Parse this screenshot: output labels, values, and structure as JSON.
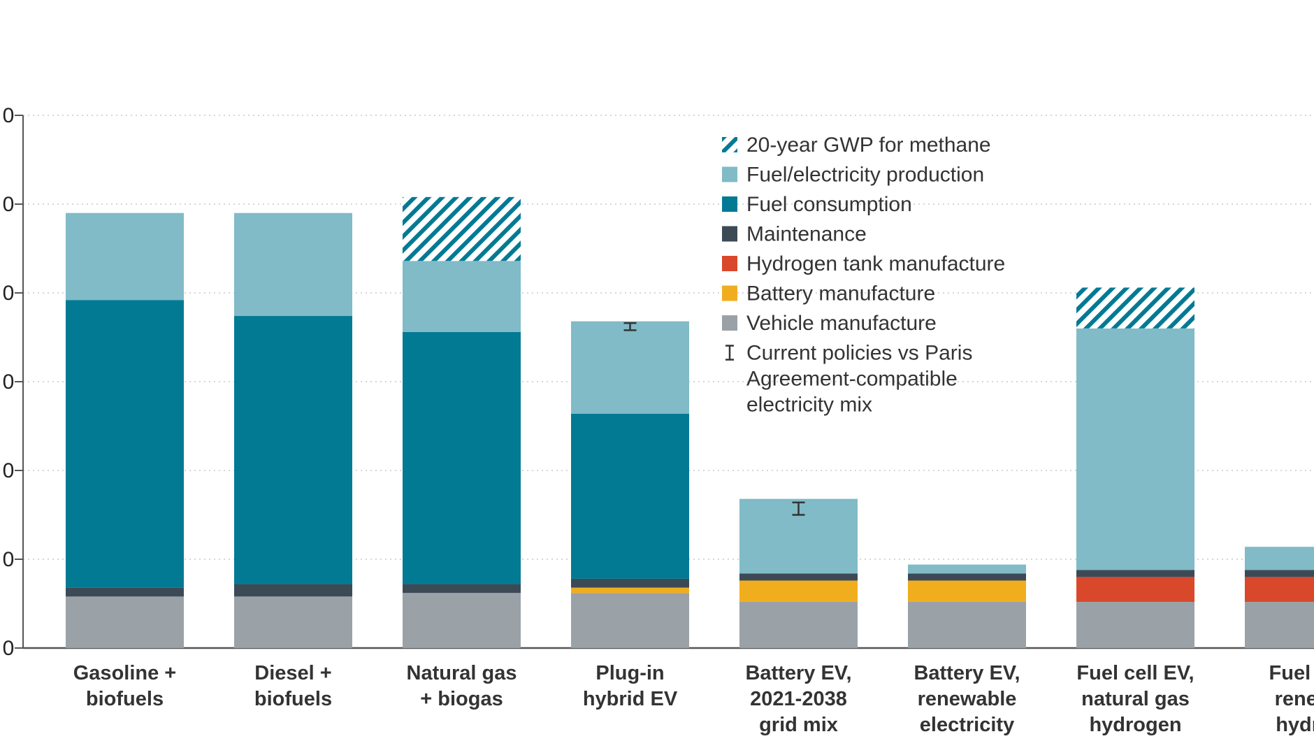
{
  "chart_data": {
    "type": "bar",
    "stacked": true,
    "xlabel": "",
    "ylabel": "",
    "ylim": [
      0,
      300
    ],
    "yticks": [
      0,
      50,
      100,
      150,
      200,
      250,
      300
    ],
    "ytick_labels": [
      "0",
      "0",
      "0",
      "0",
      "0",
      "0",
      "0"
    ],
    "grid": "horizontal-dotted",
    "legend_position": "top-center",
    "categories": [
      [
        "Gasoline +",
        "biofuels"
      ],
      [
        "Diesel +",
        "biofuels"
      ],
      [
        "Natural gas",
        "+ biogas"
      ],
      [
        "Plug-in",
        "hybrid EV"
      ],
      [
        "Battery EV,",
        "2021-2038",
        "grid mix"
      ],
      [
        "Battery EV,",
        "renewable",
        "electricity"
      ],
      [
        "Fuel cell EV,",
        "natural gas",
        "hydrogen"
      ],
      [
        "Fuel ce",
        "renew",
        "hydro"
      ]
    ],
    "series": [
      {
        "name": "Vehicle manufacture",
        "key": "vehicle",
        "color": "#9aa2a8",
        "values": [
          29,
          29,
          31,
          31,
          26,
          26,
          26,
          26
        ]
      },
      {
        "name": "Battery manufacture",
        "key": "battery",
        "color": "#f0ae1f",
        "values": [
          0,
          0,
          0,
          3,
          12,
          12,
          0,
          0
        ]
      },
      {
        "name": "Hydrogen tank manufacture",
        "key": "h2tank",
        "color": "#d9482b",
        "values": [
          0,
          0,
          0,
          0,
          0,
          0,
          14,
          14
        ]
      },
      {
        "name": "Maintenance",
        "key": "maintenance",
        "color": "#3c4a56",
        "values": [
          5,
          7,
          5,
          5,
          4,
          4,
          4,
          4
        ]
      },
      {
        "name": "Fuel consumption",
        "key": "fuel",
        "color": "#037a94",
        "values": [
          162,
          151,
          142,
          93,
          0,
          0,
          0,
          0
        ]
      },
      {
        "name": "Fuel/electricity production",
        "key": "production",
        "color": "#80bbc7",
        "values": [
          49,
          58,
          40,
          52,
          42,
          5,
          136,
          13
        ]
      },
      {
        "name": "20-year GWP for methane",
        "key": "gwp20",
        "color": "#037a94",
        "pattern": "hatch",
        "values": [
          0,
          0,
          36,
          0,
          0,
          0,
          23,
          0
        ]
      }
    ],
    "error_bars": [
      {
        "category_index": 3,
        "center": 181,
        "low": 179,
        "high": 183
      },
      {
        "category_index": 4,
        "center": 78,
        "low": 75,
        "high": 82
      }
    ],
    "legend": [
      {
        "label": "20-year GWP for methane",
        "swatch": "hatch",
        "color": "#037a94"
      },
      {
        "label": "Fuel/electricity production",
        "swatch": "square",
        "color": "#80bbc7"
      },
      {
        "label": "Fuel consumption",
        "swatch": "square",
        "color": "#037a94"
      },
      {
        "label": "Maintenance",
        "swatch": "square",
        "color": "#3c4a56"
      },
      {
        "label": "Hydrogen tank manufacture",
        "swatch": "square",
        "color": "#d9482b"
      },
      {
        "label": "Battery manufacture",
        "swatch": "square",
        "color": "#f0ae1f"
      },
      {
        "label": "Vehicle manufacture",
        "swatch": "square",
        "color": "#9aa2a8"
      },
      {
        "label": [
          "Current policies vs Paris",
          "Agreement-compatible",
          "electricity mix"
        ],
        "swatch": "errorbar",
        "color": "#333333"
      }
    ]
  }
}
